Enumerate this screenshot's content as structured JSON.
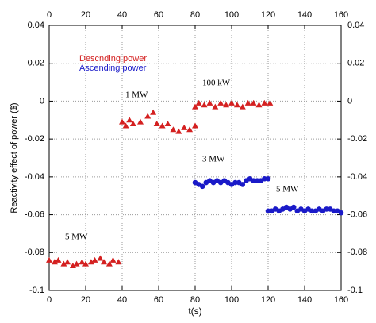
{
  "chart_data": {
    "type": "scatter",
    "x_label": "t(s)",
    "y_label": "Reactivity effect of power ($)",
    "xlim": [
      0,
      160
    ],
    "xticks": [
      0,
      20,
      40,
      60,
      80,
      100,
      120,
      140,
      160
    ],
    "ylim": [
      -0.1,
      0.04
    ],
    "yticks": [
      0.04,
      0.02,
      0,
      -0.02,
      -0.04,
      -0.06,
      -0.08,
      -0.1
    ],
    "grid": true,
    "annotations": [
      "5 MW",
      "1 MW",
      "100 kW",
      "3 MW",
      "5 MW"
    ],
    "series": [
      {
        "name": "Descnding power",
        "color": "#d42020",
        "marker": "triangle",
        "x": [
          0,
          3,
          5,
          8,
          10,
          13,
          15,
          18,
          20,
          23,
          25,
          28,
          30,
          33,
          35,
          38,
          40,
          42,
          44,
          46,
          50,
          54,
          57,
          59,
          62,
          65,
          68,
          71,
          74,
          77,
          80,
          80,
          82,
          85,
          88,
          91,
          94,
          97,
          100,
          103,
          106,
          109,
          112,
          115,
          118,
          121
        ],
        "values": [
          -0.084,
          -0.085,
          -0.084,
          -0.086,
          -0.085,
          -0.087,
          -0.086,
          -0.085,
          -0.086,
          -0.085,
          -0.084,
          -0.083,
          -0.085,
          -0.086,
          -0.084,
          -0.085,
          -0.011,
          -0.013,
          -0.01,
          -0.012,
          -0.011,
          -0.008,
          -0.006,
          -0.012,
          -0.013,
          -0.012,
          -0.015,
          -0.016,
          -0.014,
          -0.015,
          -0.013,
          -0.003,
          -0.001,
          -0.002,
          -0.001,
          -0.003,
          -0.001,
          -0.002,
          -0.001,
          -0.002,
          -0.003,
          -0.001,
          -0.001,
          -0.002,
          -0.001,
          -0.001
        ]
      },
      {
        "name": "Ascending power",
        "color": "#1a1ac8",
        "marker": "circle",
        "x": [
          80,
          82,
          84,
          86,
          88,
          90,
          92,
          94,
          96,
          98,
          100,
          102,
          104,
          106,
          108,
          110,
          112,
          114,
          116,
          118,
          120,
          120,
          122,
          124,
          126,
          128,
          130,
          132,
          134,
          136,
          138,
          140,
          142,
          144,
          146,
          148,
          150,
          152,
          154,
          156,
          158,
          160
        ],
        "values": [
          -0.043,
          -0.044,
          -0.045,
          -0.043,
          -0.042,
          -0.043,
          -0.042,
          -0.043,
          -0.042,
          -0.043,
          -0.044,
          -0.043,
          -0.043,
          -0.044,
          -0.042,
          -0.041,
          -0.042,
          -0.042,
          -0.042,
          -0.041,
          -0.041,
          -0.058,
          -0.058,
          -0.057,
          -0.058,
          -0.057,
          -0.056,
          -0.057,
          -0.056,
          -0.058,
          -0.057,
          -0.058,
          -0.057,
          -0.058,
          -0.058,
          -0.057,
          -0.058,
          -0.057,
          -0.057,
          -0.058,
          -0.058,
          -0.059
        ]
      }
    ]
  }
}
